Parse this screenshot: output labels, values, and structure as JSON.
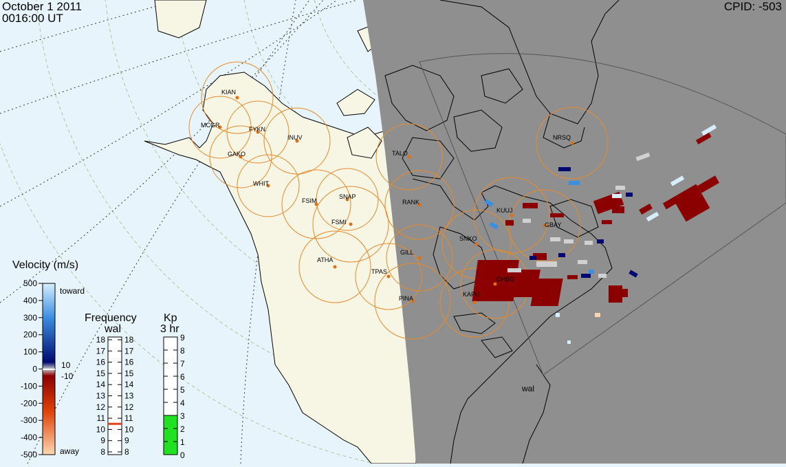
{
  "header": {
    "date": "October  1 2011",
    "time": "0016:00 UT",
    "cpid": "CPID:  -503"
  },
  "stations": [
    {
      "code": "KIAN"
    },
    {
      "code": "MCGR"
    },
    {
      "code": "FYKN"
    },
    {
      "code": "INUV"
    },
    {
      "code": "GAKO"
    },
    {
      "code": "WHIT"
    },
    {
      "code": "FSIM"
    },
    {
      "code": "SNAP"
    },
    {
      "code": "FSMI"
    },
    {
      "code": "TALO"
    },
    {
      "code": "RANK"
    },
    {
      "code": "ATHA"
    },
    {
      "code": "GILL"
    },
    {
      "code": "TPAS"
    },
    {
      "code": "PINA"
    },
    {
      "code": "NRSQ"
    },
    {
      "code": "KUUJ"
    },
    {
      "code": "GBAY"
    },
    {
      "code": "SNKO"
    },
    {
      "code": "CHBG"
    },
    {
      "code": "KAPU"
    }
  ],
  "radar_label": "wal",
  "velocity_scale": {
    "title": "Velocity (m/s)",
    "ticks": [
      "500",
      "400",
      "300",
      "200",
      "100",
      "0",
      "-100",
      "-200",
      "-300",
      "-400",
      "-500"
    ],
    "toward_label": "toward",
    "away_label": "away",
    "pos_threshold": "10",
    "neg_threshold": "-10",
    "colors": {
      "toward_light": "#d6eefc",
      "toward_mid": "#3c8ee0",
      "toward_dark": "#000a6e",
      "away_dark": "#8b0000",
      "away_mid": "#e0440a",
      "away_light": "#fcd7b0"
    }
  },
  "frequency_scale": {
    "title": "Frequency",
    "subtitle": "wal",
    "ticks": [
      "18",
      "17",
      "16",
      "15",
      "14",
      "13",
      "12",
      "11",
      "10",
      "9",
      "8"
    ],
    "value_mhz": 10.5,
    "marker_color": "#e0401a"
  },
  "kp_scale": {
    "title": "Kp",
    "subtitle": "3 hr",
    "ticks": [
      "9",
      "8",
      "7",
      "6",
      "5",
      "4",
      "3",
      "2",
      "1",
      "0"
    ],
    "value": 3,
    "fill_color": "#22e022"
  },
  "colors": {
    "ocean": "#e8f4fb",
    "land_day": "#f7f5e4",
    "night": "#8f8f8f",
    "fov_circle": "#e88a2a",
    "station_dot": "#e07010"
  }
}
